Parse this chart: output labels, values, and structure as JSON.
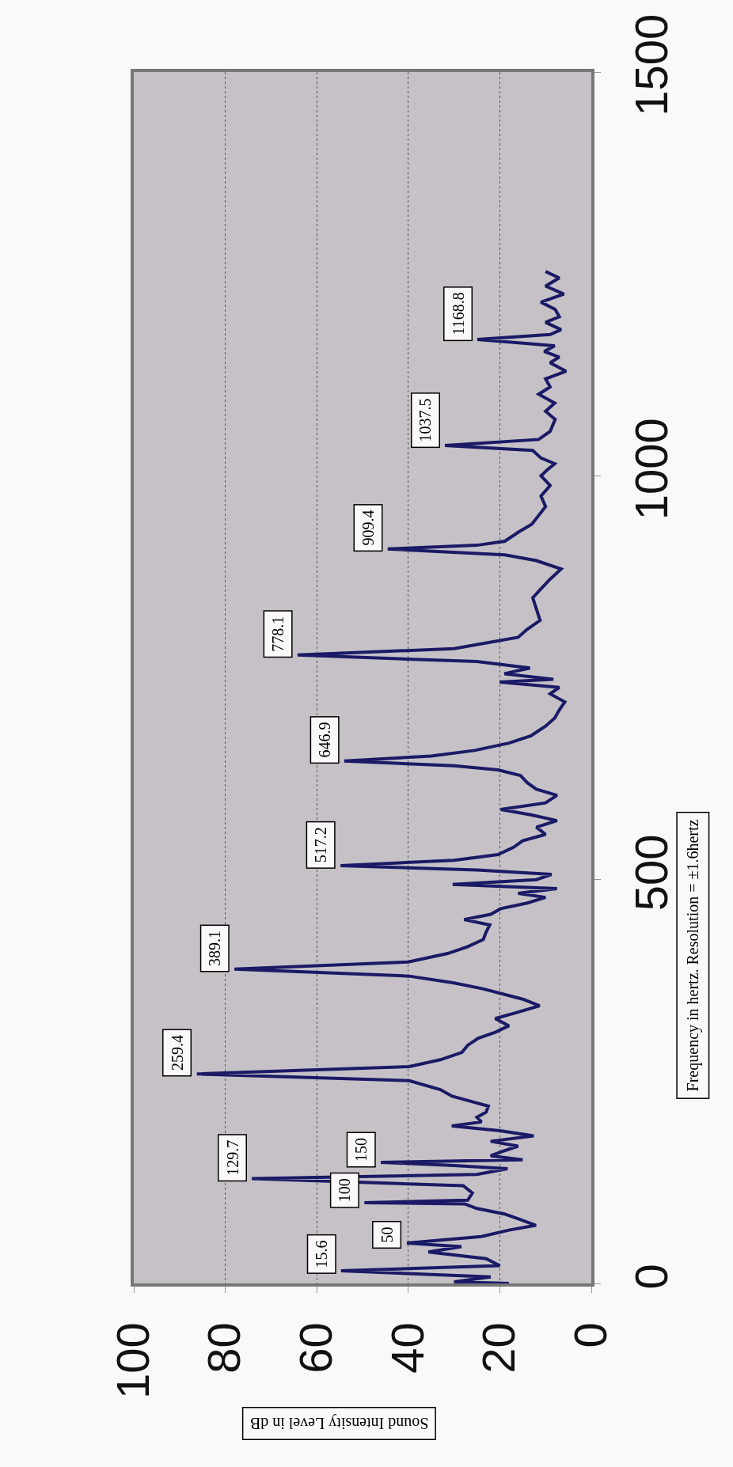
{
  "chart_data": {
    "type": "line",
    "xlabel": "Sound Intensity Level in dB",
    "ylabel": "Frequency in hertz. Resolution = ±1.6hertz",
    "series": [
      {
        "color": "#1a1a66",
        "x": [
          18,
          30,
          22,
          54.7,
          20,
          23,
          35.6,
          28.4,
          40.3,
          24,
          18,
          12.1,
          15.7,
          19,
          25,
          27.7,
          49.6,
          27,
          26,
          28,
          74.2,
          25,
          18.3,
          30,
          46,
          15,
          22,
          19.4,
          16,
          22,
          12.6,
          20,
          30.5,
          24,
          25,
          23,
          22.5,
          26,
          30.4,
          33,
          39.8,
          86.2,
          39.8,
          33,
          28.3,
          27,
          24.7,
          21,
          18,
          21,
          16,
          11.3,
          15,
          23.7,
          30,
          39.8,
          78,
          40,
          31.4,
          27,
          23.6,
          23,
          22.2,
          27.8,
          22,
          19.8,
          14,
          10,
          16,
          7.5,
          30.3,
          12,
          8.7,
          25,
          54.8,
          30,
          20.4,
          17,
          15,
          10,
          12,
          7.5,
          13,
          19.8,
          10,
          7.5,
          12,
          14,
          15.5,
          20.4,
          30,
          54,
          35,
          25.5,
          18,
          13.2,
          10,
          8,
          7,
          5.8,
          9,
          7,
          20,
          8.3,
          19,
          13.4,
          25,
          64.2,
          30,
          16,
          14,
          11.2,
          12,
          12.8,
          11,
          9,
          6.6,
          12,
          18.9,
          44.5,
          25,
          18.9,
          16,
          13,
          11.5,
          10,
          11,
          9,
          11,
          9.7,
          8,
          11,
          12.8,
          32,
          11.5,
          9,
          7.9,
          10,
          8,
          11.5,
          9,
          10,
          5.5,
          9,
          7,
          10.3,
          8,
          24.9,
          9,
          6.6,
          10,
          7,
          7.9,
          11,
          6,
          10,
          7,
          10
        ],
        "values": [
          0,
          2,
          8,
          15.6,
          22,
          30.6,
          38.9,
          45.6,
          50,
          58,
          66,
          72,
          79.5,
          86,
          92.8,
          98.5,
          100,
          103,
          112,
          121,
          129.7,
          135,
          142,
          146,
          150,
          153,
          158,
          163.6,
          170,
          176,
          182.8,
          189,
          195,
          200,
          205.7,
          212,
          219.5,
          225,
          231.8,
          240,
          251,
          259.4,
          268.5,
          277,
          286,
          295,
          303.7,
          311,
          319,
          328,
          336,
          343.8,
          352,
          364.8,
          372,
          380.5,
          389.1,
          398,
          408.5,
          417,
          426,
          435,
          443.8,
          450.6,
          457,
          464,
          471,
          478,
          483,
          488.8,
          494,
          500,
          506.5,
          512,
          517.2,
          524,
          531,
          540,
          548,
          556,
          565,
          573,
          580,
          586.8,
          595,
          604.4,
          612,
          620,
          629,
          635.8,
          641,
          646.9,
          653,
          660,
          669,
          678,
          690,
          700,
          710,
          720,
          730,
          738,
          744.5,
          748,
          755,
          762,
          770,
          778.1,
          786,
          800,
          810,
          821,
          835,
          849,
          860,
          872,
          884.6,
          895,
          902,
          909.4,
          914,
          919,
          930,
          940,
          951,
          962,
          975,
          988,
          1000,
          1007,
          1015,
          1022,
          1031.5,
          1037.5,
          1045,
          1055,
          1069.8,
          1080,
          1090,
          1101,
          1110,
          1120,
          1129.5,
          1140,
          1147,
          1154,
          1161,
          1168.8,
          1175,
          1181,
          1190,
          1197,
          1206,
          1215,
          1225,
          1235,
          1245,
          1253
        ]
      }
    ],
    "xlim": [
      100,
      0
    ],
    "xticks": [
      100,
      80,
      60,
      40,
      20,
      0
    ],
    "ylim": [
      0,
      1500
    ],
    "yticks": [
      0,
      500,
      1000,
      1500
    ],
    "grid": "x",
    "annotations": [
      {
        "text": "15.6",
        "x": 54.7,
        "y": 15.6
      },
      {
        "text": "50",
        "x": 40.3,
        "y": 50
      },
      {
        "text": "100",
        "x": 49.6,
        "y": 100
      },
      {
        "text": "129.7",
        "x": 74.2,
        "y": 129.7
      },
      {
        "text": "150",
        "x": 46,
        "y": 150
      },
      {
        "text": "259.4",
        "x": 86.2,
        "y": 259.4
      },
      {
        "text": "389.1",
        "x": 78,
        "y": 389.1
      },
      {
        "text": "517.2",
        "x": 54.8,
        "y": 517.2
      },
      {
        "text": "646.9",
        "x": 54,
        "y": 646.9
      },
      {
        "text": "778.1",
        "x": 64.2,
        "y": 778.1
      },
      {
        "text": "909.4",
        "x": 44.5,
        "y": 909.4
      },
      {
        "text": "1037.5",
        "x": 32,
        "y": 1037.5
      },
      {
        "text": "1168.8",
        "x": 24.9,
        "y": 1168.8
      }
    ]
  }
}
